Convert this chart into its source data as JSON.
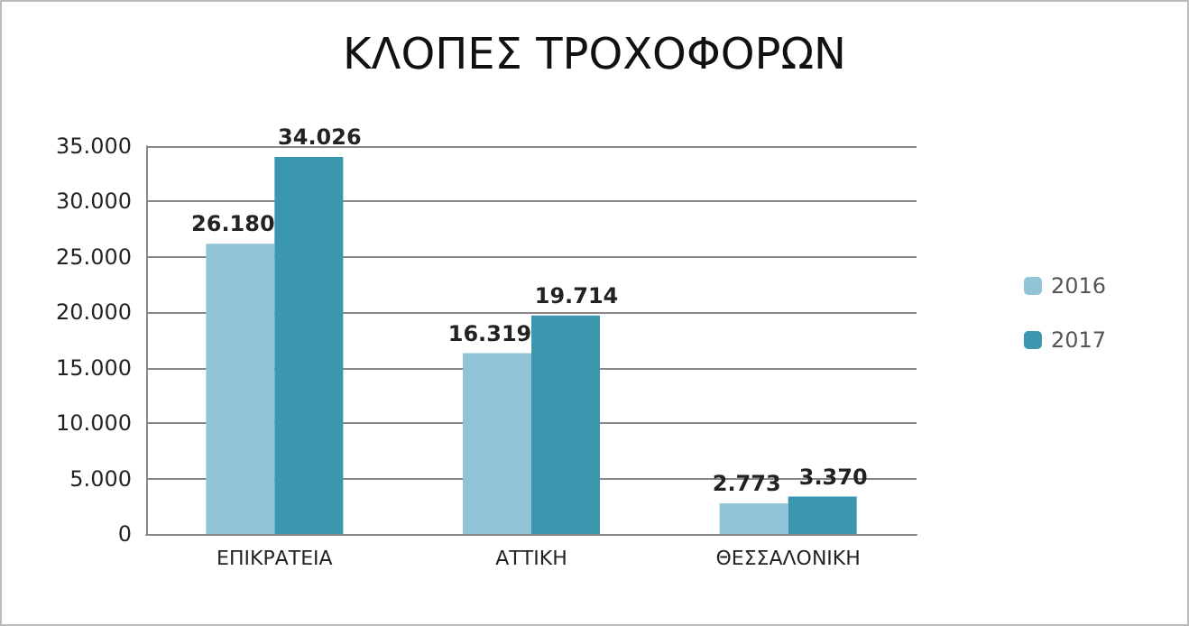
{
  "chart_data": {
    "type": "bar",
    "title": "ΚΛΟΠΕΣ ΤΡΟΧΟΦΟΡΩΝ",
    "categories": [
      "ΕΠΙΚΡΑΤΕΙΑ",
      "ΑΤΤΙΚΗ",
      "ΘΕΣΣΑΛΟΝΙΚΗ"
    ],
    "series": [
      {
        "name": "2016",
        "color": "#92c4d8",
        "values": [
          26180,
          16319,
          2773
        ],
        "value_labels": [
          "26.180",
          "16.319",
          "2.773"
        ]
      },
      {
        "name": "2017",
        "color": "#3b97ae",
        "values": [
          34026,
          19714,
          3370
        ],
        "value_labels": [
          "34.026",
          "19.714",
          "3.370"
        ]
      }
    ],
    "ylim": [
      0,
      35000
    ],
    "yticks": [
      {
        "value": 0,
        "label": "0"
      },
      {
        "value": 5000,
        "label": "5.000"
      },
      {
        "value": 10000,
        "label": "10.000"
      },
      {
        "value": 15000,
        "label": "15.000"
      },
      {
        "value": 20000,
        "label": "20.000"
      },
      {
        "value": 25000,
        "label": "25.000"
      },
      {
        "value": 30000,
        "label": "30.000"
      },
      {
        "value": 35000,
        "label": "35.000"
      }
    ],
    "grid": "y",
    "legend": "right"
  }
}
